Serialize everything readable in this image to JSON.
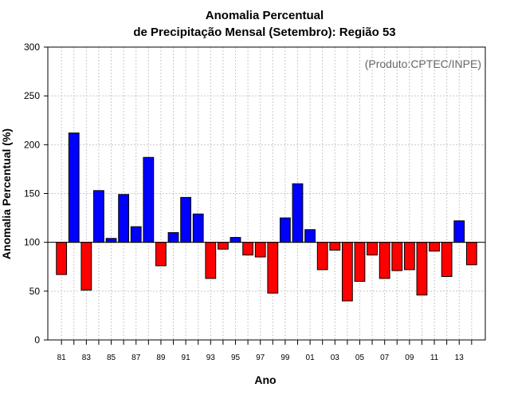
{
  "chart_data": {
    "type": "bar",
    "title": [
      "Anomalia Percentual",
      "de Precipitação Mensal (Setembro): Região 53"
    ],
    "xlabel": "Ano",
    "ylabel": "Anomalia Percentual (%)",
    "credit": "(Produto:CPTEC/INPE)",
    "ylim": [
      0,
      300
    ],
    "yticks": [
      0,
      50,
      100,
      150,
      200,
      250,
      300
    ],
    "baseline": 100,
    "x_tick_labels": [
      "81",
      "83",
      "85",
      "87",
      "89",
      "91",
      "93",
      "95",
      "97",
      "99",
      "01",
      "03",
      "05",
      "07",
      "09",
      "11",
      "13"
    ],
    "categories": [
      "1981",
      "1982",
      "1983",
      "1984",
      "1985",
      "1986",
      "1987",
      "1988",
      "1989",
      "1990",
      "1991",
      "1992",
      "1993",
      "1994",
      "1995",
      "1996",
      "1997",
      "1998",
      "1999",
      "2000",
      "2001",
      "2002",
      "2003",
      "2004",
      "2005",
      "2006",
      "2007",
      "2008",
      "2009",
      "2010",
      "2011",
      "2012",
      "2013",
      "2014"
    ],
    "values": [
      67,
      212,
      51,
      153,
      104,
      149,
      116,
      187,
      76,
      110,
      146,
      129,
      63,
      93,
      105,
      87,
      85,
      48,
      125,
      160,
      113,
      72,
      92,
      40,
      60,
      87,
      63,
      71,
      72,
      46,
      91,
      65,
      122,
      77
    ],
    "colors": {
      "above": "#0000ff",
      "below": "#ff0000",
      "grid": "#c8c8c8"
    },
    "grid": true
  }
}
